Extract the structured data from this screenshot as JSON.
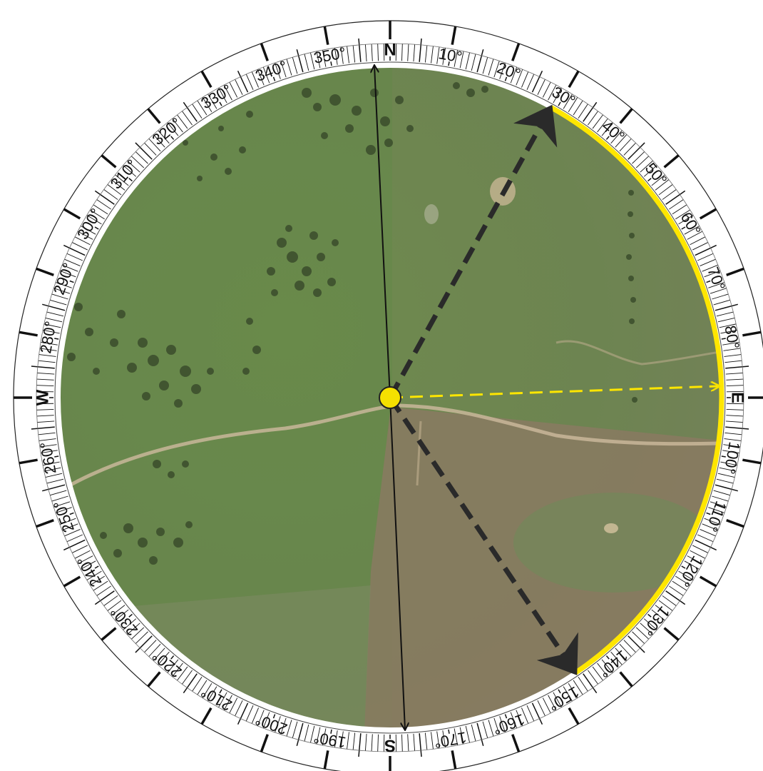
{
  "compass": {
    "cardinals": [
      {
        "label": "N",
        "bearing": 0
      },
      {
        "label": "E",
        "bearing": 90
      },
      {
        "label": "S",
        "bearing": 180
      },
      {
        "label": "W",
        "bearing": 270
      }
    ],
    "degree_labels": [
      {
        "text": "10°",
        "bearing": 10
      },
      {
        "text": "20°",
        "bearing": 20
      },
      {
        "text": "30°",
        "bearing": 30
      },
      {
        "text": "40°",
        "bearing": 40
      },
      {
        "text": "50°",
        "bearing": 50
      },
      {
        "text": "60°",
        "bearing": 60
      },
      {
        "text": "70°",
        "bearing": 70
      },
      {
        "text": "80°",
        "bearing": 80
      },
      {
        "text": "100°",
        "bearing": 100
      },
      {
        "text": "110°",
        "bearing": 110
      },
      {
        "text": "120°",
        "bearing": 120
      },
      {
        "text": "130°",
        "bearing": 130
      },
      {
        "text": "140°",
        "bearing": 140
      },
      {
        "text": "150°",
        "bearing": 150
      },
      {
        "text": "160°",
        "bearing": 160
      },
      {
        "text": "170°",
        "bearing": 170
      },
      {
        "text": "190°",
        "bearing": 190
      },
      {
        "text": "200°",
        "bearing": 200
      },
      {
        "text": "210°",
        "bearing": 210
      },
      {
        "text": "220°",
        "bearing": 220
      },
      {
        "text": "230°",
        "bearing": 230
      },
      {
        "text": "240°",
        "bearing": 240
      },
      {
        "text": "250°",
        "bearing": 250
      },
      {
        "text": "260°",
        "bearing": 260
      },
      {
        "text": "280°",
        "bearing": 280
      },
      {
        "text": "290°",
        "bearing": 290
      },
      {
        "text": "300°",
        "bearing": 300
      },
      {
        "text": "310°",
        "bearing": 310
      },
      {
        "text": "320°",
        "bearing": 320
      },
      {
        "text": "330°",
        "bearing": 330
      },
      {
        "text": "340°",
        "bearing": 340
      },
      {
        "text": "350°",
        "bearing": 350
      }
    ]
  },
  "view": {
    "center_marker_color": "#f5e000",
    "field_of_view": {
      "start_bearing": 29,
      "end_bearing": 146,
      "color": "#ffe600"
    },
    "view_direction_bearing": 88,
    "boundary_arrow_color": "#2a2a2a",
    "north_south_line_color": "#111111"
  }
}
